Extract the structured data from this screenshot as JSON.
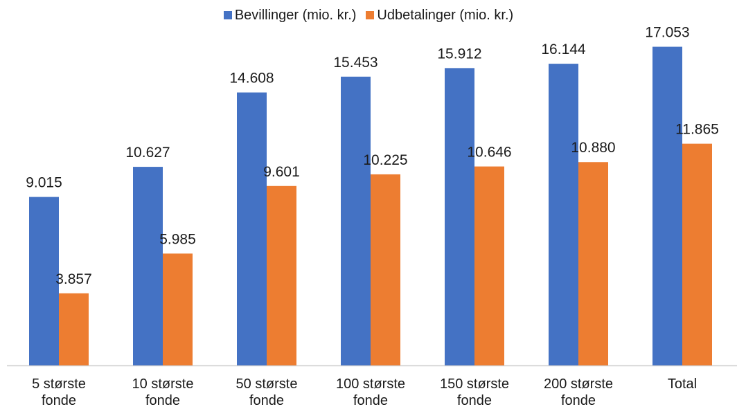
{
  "chart_data": {
    "type": "bar",
    "title": "",
    "xlabel": "",
    "ylabel": "",
    "ylim": [
      0,
      18000
    ],
    "grid": false,
    "legend_position": "top",
    "categories": [
      [
        "5 største",
        "fonde"
      ],
      [
        "10 største",
        "fonde"
      ],
      [
        "50 største",
        "fonde"
      ],
      [
        "100 største",
        "fonde"
      ],
      [
        "150 største",
        "fonde"
      ],
      [
        "200 største",
        "fonde"
      ],
      [
        "Total"
      ]
    ],
    "series": [
      {
        "name": "Bevillinger (mio. kr.)",
        "color": "#4472c4",
        "values": [
          9015,
          10627,
          14608,
          15453,
          15912,
          16144,
          17053
        ],
        "labels": [
          "9.015",
          "10.627",
          "14.608",
          "15.453",
          "15.912",
          "16.144",
          "17.053"
        ]
      },
      {
        "name": "Udbetalinger (mio. kr.)",
        "color": "#ed7d31",
        "values": [
          3857,
          5985,
          9601,
          10225,
          10646,
          10880,
          11865
        ],
        "labels": [
          "3.857",
          "5.985",
          "9.601",
          "10.225",
          "10.646",
          "10.880",
          "11.865"
        ]
      }
    ]
  }
}
